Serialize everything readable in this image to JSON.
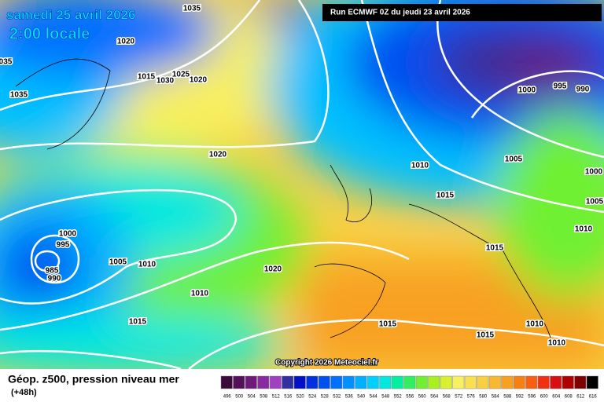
{
  "header": {
    "date": "samedi 25 avril 2026",
    "time": "2:00 locale",
    "run": "Run ECMWF 0Z du jeudi 23 avril 2026"
  },
  "copyright": "Copyright 2026 Meteociel.fr",
  "legend": {
    "title": "Géop. z500, pression niveau mer",
    "subtitle": "(+48h)",
    "scale": [
      {
        "label": "496",
        "color": "#3a0a3a"
      },
      {
        "label": "500",
        "color": "#55105a"
      },
      {
        "label": "504",
        "color": "#6e1a7a"
      },
      {
        "label": "508",
        "color": "#8a2aa0"
      },
      {
        "label": "512",
        "color": "#a040c0"
      },
      {
        "label": "516",
        "color": "#3030a0"
      },
      {
        "label": "520",
        "color": "#0010c8"
      },
      {
        "label": "524",
        "color": "#0030e0"
      },
      {
        "label": "528",
        "color": "#0050f0"
      },
      {
        "label": "532",
        "color": "#0070ff"
      },
      {
        "label": "536",
        "color": "#0090ff"
      },
      {
        "label": "540",
        "color": "#00b0ff"
      },
      {
        "label": "544",
        "color": "#00d0ff"
      },
      {
        "label": "548",
        "color": "#00e8e0"
      },
      {
        "label": "552",
        "color": "#00f0a0"
      },
      {
        "label": "556",
        "color": "#30f060"
      },
      {
        "label": "560",
        "color": "#70f030"
      },
      {
        "label": "564",
        "color": "#a8f020"
      },
      {
        "label": "568",
        "color": "#d8f030"
      },
      {
        "label": "572",
        "color": "#f8f060"
      },
      {
        "label": "576",
        "color": "#f8e050"
      },
      {
        "label": "580",
        "color": "#f8d040"
      },
      {
        "label": "584",
        "color": "#f8b830"
      },
      {
        "label": "588",
        "color": "#f8a020"
      },
      {
        "label": "592",
        "color": "#f88010"
      },
      {
        "label": "596",
        "color": "#f86010"
      },
      {
        "label": "600",
        "color": "#f03010"
      },
      {
        "label": "604",
        "color": "#d81010"
      },
      {
        "label": "608",
        "color": "#b00000"
      },
      {
        "label": "612",
        "color": "#800000"
      },
      {
        "label": "616",
        "color": "#000000"
      }
    ]
  },
  "isobars": [
    "1035",
    "1020",
    "035",
    "1035",
    "1015",
    "1030",
    "1025",
    "1020",
    "1000",
    "995",
    "990",
    "1020",
    "1010",
    "1005",
    "1000",
    "1015",
    "1005",
    "1010",
    "1000",
    "995",
    "985",
    "990",
    "1005",
    "1010",
    "1020",
    "1015",
    "1010",
    "1015",
    "1015",
    "1015",
    "1010",
    "1010"
  ]
}
